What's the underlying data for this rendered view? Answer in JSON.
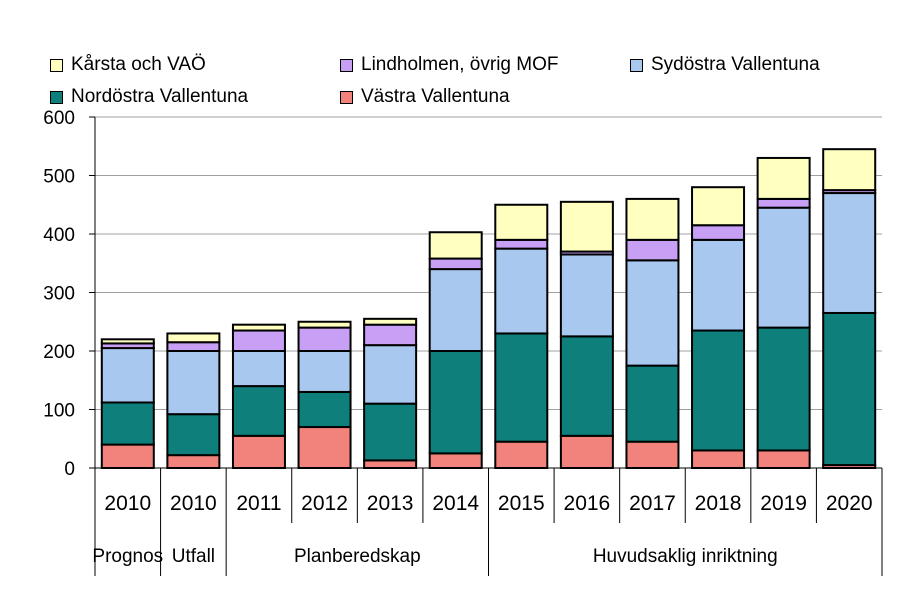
{
  "chart_data": {
    "type": "bar",
    "stacked": true,
    "title": "",
    "xlabel": "",
    "ylabel": "",
    "ylim": [
      0,
      600
    ],
    "yticks": [
      0,
      100,
      200,
      300,
      400,
      500,
      600
    ],
    "categories": [
      "2010",
      "2010",
      "2011",
      "2012",
      "2013",
      "2014",
      "2015",
      "2016",
      "2017",
      "2018",
      "2019",
      "2020"
    ],
    "groups": [
      {
        "label": "Prognos",
        "from": 0,
        "to": 0
      },
      {
        "label": "Utfall",
        "from": 1,
        "to": 1
      },
      {
        "label": "Planberedskap",
        "from": 2,
        "to": 5
      },
      {
        "label": "Huvudsaklig inriktning",
        "from": 6,
        "to": 11
      }
    ],
    "legend_position": "top",
    "series": [
      {
        "name": "Västra Vallentuna",
        "color": "#f2837c",
        "values": [
          40,
          22,
          55,
          70,
          13,
          25,
          45,
          55,
          45,
          30,
          30,
          5
        ]
      },
      {
        "name": "Nordöstra Vallentuna",
        "color": "#0e7f7b",
        "values": [
          72,
          70,
          85,
          60,
          97,
          175,
          185,
          170,
          130,
          205,
          210,
          260
        ]
      },
      {
        "name": "Sydöstra Vallentuna",
        "color": "#a9c8ef",
        "values": [
          93,
          108,
          60,
          70,
          100,
          140,
          145,
          140,
          180,
          155,
          205,
          205
        ]
      },
      {
        "name": "Lindholmen, övrig MOF",
        "color": "#c79ff5",
        "values": [
          8,
          15,
          35,
          40,
          35,
          18,
          15,
          5,
          35,
          25,
          15,
          5
        ]
      },
      {
        "name": "Kårsta och VAÖ",
        "color": "#ffffc0",
        "values": [
          7,
          15,
          10,
          10,
          10,
          45,
          60,
          85,
          70,
          65,
          70,
          70
        ]
      }
    ]
  },
  "legend": [
    {
      "label": "Kårsta och VAÖ",
      "color": "#ffffc0"
    },
    {
      "label": "Lindholmen, övrig MOF",
      "color": "#c79ff5"
    },
    {
      "label": "Sydöstra Vallentuna",
      "color": "#a9c8ef"
    },
    {
      "label": "Nordöstra Vallentuna",
      "color": "#0e7f7b"
    },
    {
      "label": "Västra Vallentuna",
      "color": "#f2837c"
    }
  ]
}
